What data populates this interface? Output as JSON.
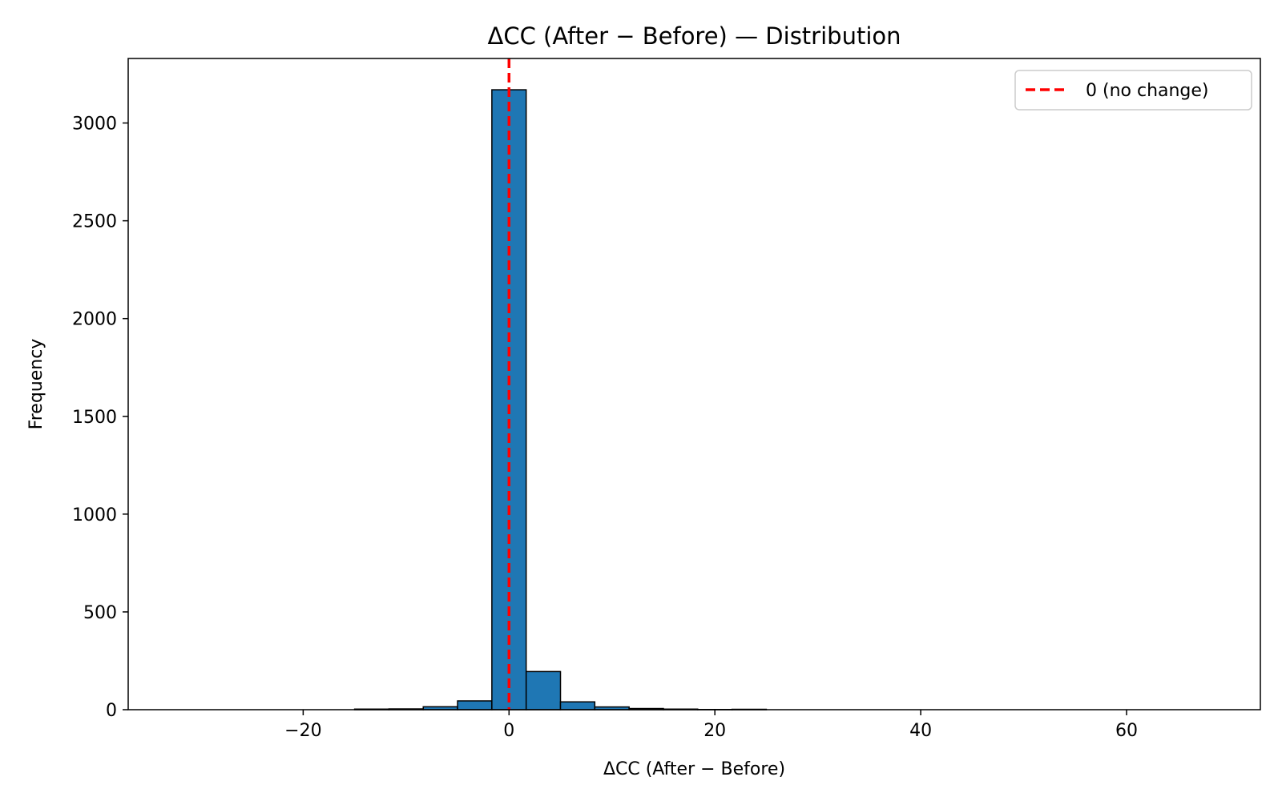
{
  "chart_data": {
    "type": "bar",
    "title": "ΔCC (After − Before) — Distribution",
    "xlabel": "ΔCC (After − Before)",
    "ylabel": "Frequency",
    "xlim": [
      -37,
      73
    ],
    "ylim": [
      0,
      3330
    ],
    "xticks": [
      -20,
      0,
      20,
      40,
      60
    ],
    "xtick_labels": [
      "−20",
      "0",
      "20",
      "40",
      "60"
    ],
    "yticks": [
      0,
      500,
      1000,
      1500,
      2000,
      2500,
      3000
    ],
    "ytick_labels": [
      "0",
      "500",
      "1000",
      "1500",
      "2000",
      "2500",
      "3000"
    ],
    "bin_width": 3.333,
    "bins": [
      {
        "x0": -15.0,
        "x1": -11.667,
        "count": 3
      },
      {
        "x0": -11.667,
        "x1": -8.333,
        "count": 4
      },
      {
        "x0": -8.333,
        "x1": -5.0,
        "count": 15
      },
      {
        "x0": -5.0,
        "x1": -1.667,
        "count": 45
      },
      {
        "x0": -1.667,
        "x1": 1.667,
        "count": 3170
      },
      {
        "x0": 1.667,
        "x1": 5.0,
        "count": 195
      },
      {
        "x0": 5.0,
        "x1": 8.333,
        "count": 40
      },
      {
        "x0": 8.333,
        "x1": 11.667,
        "count": 14
      },
      {
        "x0": 11.667,
        "x1": 15.0,
        "count": 6
      },
      {
        "x0": 15.0,
        "x1": 18.333,
        "count": 3
      },
      {
        "x0": 18.333,
        "x1": 21.667,
        "count": 1
      },
      {
        "x0": 21.667,
        "x1": 25.0,
        "count": 2
      }
    ],
    "reference_line": {
      "x": 0,
      "label": "0 (no change)",
      "color": "#ff0000",
      "style": "dashed"
    },
    "bar_color": "#1f77b4",
    "edge_color": "#000000",
    "legend": {
      "placement": "top-right",
      "entries": [
        "0 (no change)"
      ]
    },
    "grid": false
  }
}
